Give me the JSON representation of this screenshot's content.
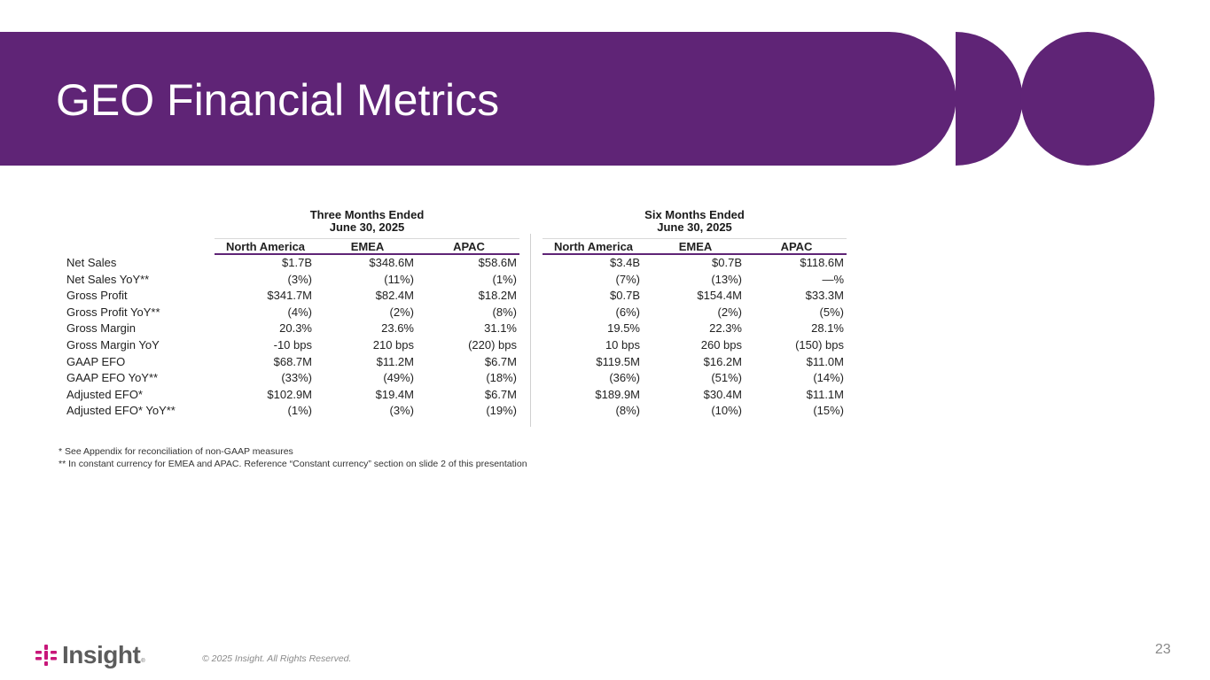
{
  "slide": {
    "title": "GEO Financial Metrics",
    "page_number": "23",
    "copyright": "© 2025 Insight. All Rights Reserved.",
    "logo_text": "Insight",
    "logo_mark": "®",
    "brand_color": "#5f2476",
    "logo_accent_color": "#c8177a"
  },
  "periods": [
    {
      "heading_line1": "Three Months Ended",
      "heading_line2": "June 30, 2025"
    },
    {
      "heading_line1": "Six Months Ended",
      "heading_line2": "June 30, 2025"
    }
  ],
  "columns": [
    "North America",
    "EMEA",
    "APAC"
  ],
  "rows": [
    {
      "label": "Net Sales",
      "three_months": [
        "$1.7B",
        "$348.6M",
        "$58.6M"
      ],
      "six_months": [
        "$3.4B",
        "$0.7B",
        "$118.6M"
      ]
    },
    {
      "label": "Net Sales YoY**",
      "three_months": [
        "(3%)",
        "(11%)",
        "(1%)"
      ],
      "six_months": [
        "(7%)",
        "(13%)",
        "—%"
      ]
    },
    {
      "label": "Gross Profit",
      "three_months": [
        "$341.7M",
        "$82.4M",
        "$18.2M"
      ],
      "six_months": [
        "$0.7B",
        "$154.4M",
        "$33.3M"
      ]
    },
    {
      "label": "Gross Profit YoY**",
      "three_months": [
        "(4%)",
        "(2%)",
        "(8%)"
      ],
      "six_months": [
        "(6%)",
        "(2%)",
        "(5%)"
      ]
    },
    {
      "label": "Gross Margin",
      "three_months": [
        "20.3%",
        "23.6%",
        "31.1%"
      ],
      "six_months": [
        "19.5%",
        "22.3%",
        "28.1%"
      ]
    },
    {
      "label": "Gross Margin YoY",
      "three_months": [
        "-10 bps",
        "210 bps",
        "(220) bps"
      ],
      "six_months": [
        "10 bps",
        "260 bps",
        "(150) bps"
      ]
    },
    {
      "label": "GAAP EFO",
      "three_months": [
        "$68.7M",
        "$11.2M",
        "$6.7M"
      ],
      "six_months": [
        "$119.5M",
        "$16.2M",
        "$11.0M"
      ]
    },
    {
      "label": "GAAP EFO YoY**",
      "three_months": [
        "(33%)",
        "(49%)",
        "(18%)"
      ],
      "six_months": [
        "(36%)",
        "(51%)",
        "(14%)"
      ]
    },
    {
      "label": "Adjusted EFO*",
      "three_months": [
        "$102.9M",
        "$19.4M",
        "$6.7M"
      ],
      "six_months": [
        "$189.9M",
        "$30.4M",
        "$11.1M"
      ]
    },
    {
      "label": "Adjusted EFO* YoY**",
      "three_months": [
        "(1%)",
        "(3%)",
        "(19%)"
      ],
      "six_months": [
        "(8%)",
        "(10%)",
        "(15%)"
      ]
    }
  ],
  "footnotes": [
    "* See Appendix for reconciliation of non-GAAP measures",
    "** In constant currency for EMEA and APAC. Reference “Constant currency” section on slide 2 of this presentation"
  ]
}
